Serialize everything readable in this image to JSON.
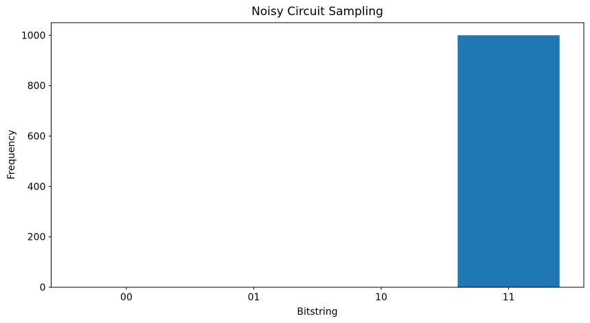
{
  "chart_data": {
    "type": "bar",
    "title": "Noisy Circuit Sampling",
    "xlabel": "Bitstring",
    "ylabel": "Frequency",
    "categories": [
      "00",
      "01",
      "10",
      "11"
    ],
    "values": [
      0,
      0,
      0,
      1000
    ],
    "yticks": [
      0,
      200,
      400,
      600,
      800,
      1000
    ],
    "ylim": [
      0,
      1050
    ],
    "bar_color": "#1f77b4",
    "bar_width_fraction": 0.8,
    "grid": false,
    "legend_position": "none",
    "spine_color": "#000000",
    "background_color": "#ffffff"
  }
}
